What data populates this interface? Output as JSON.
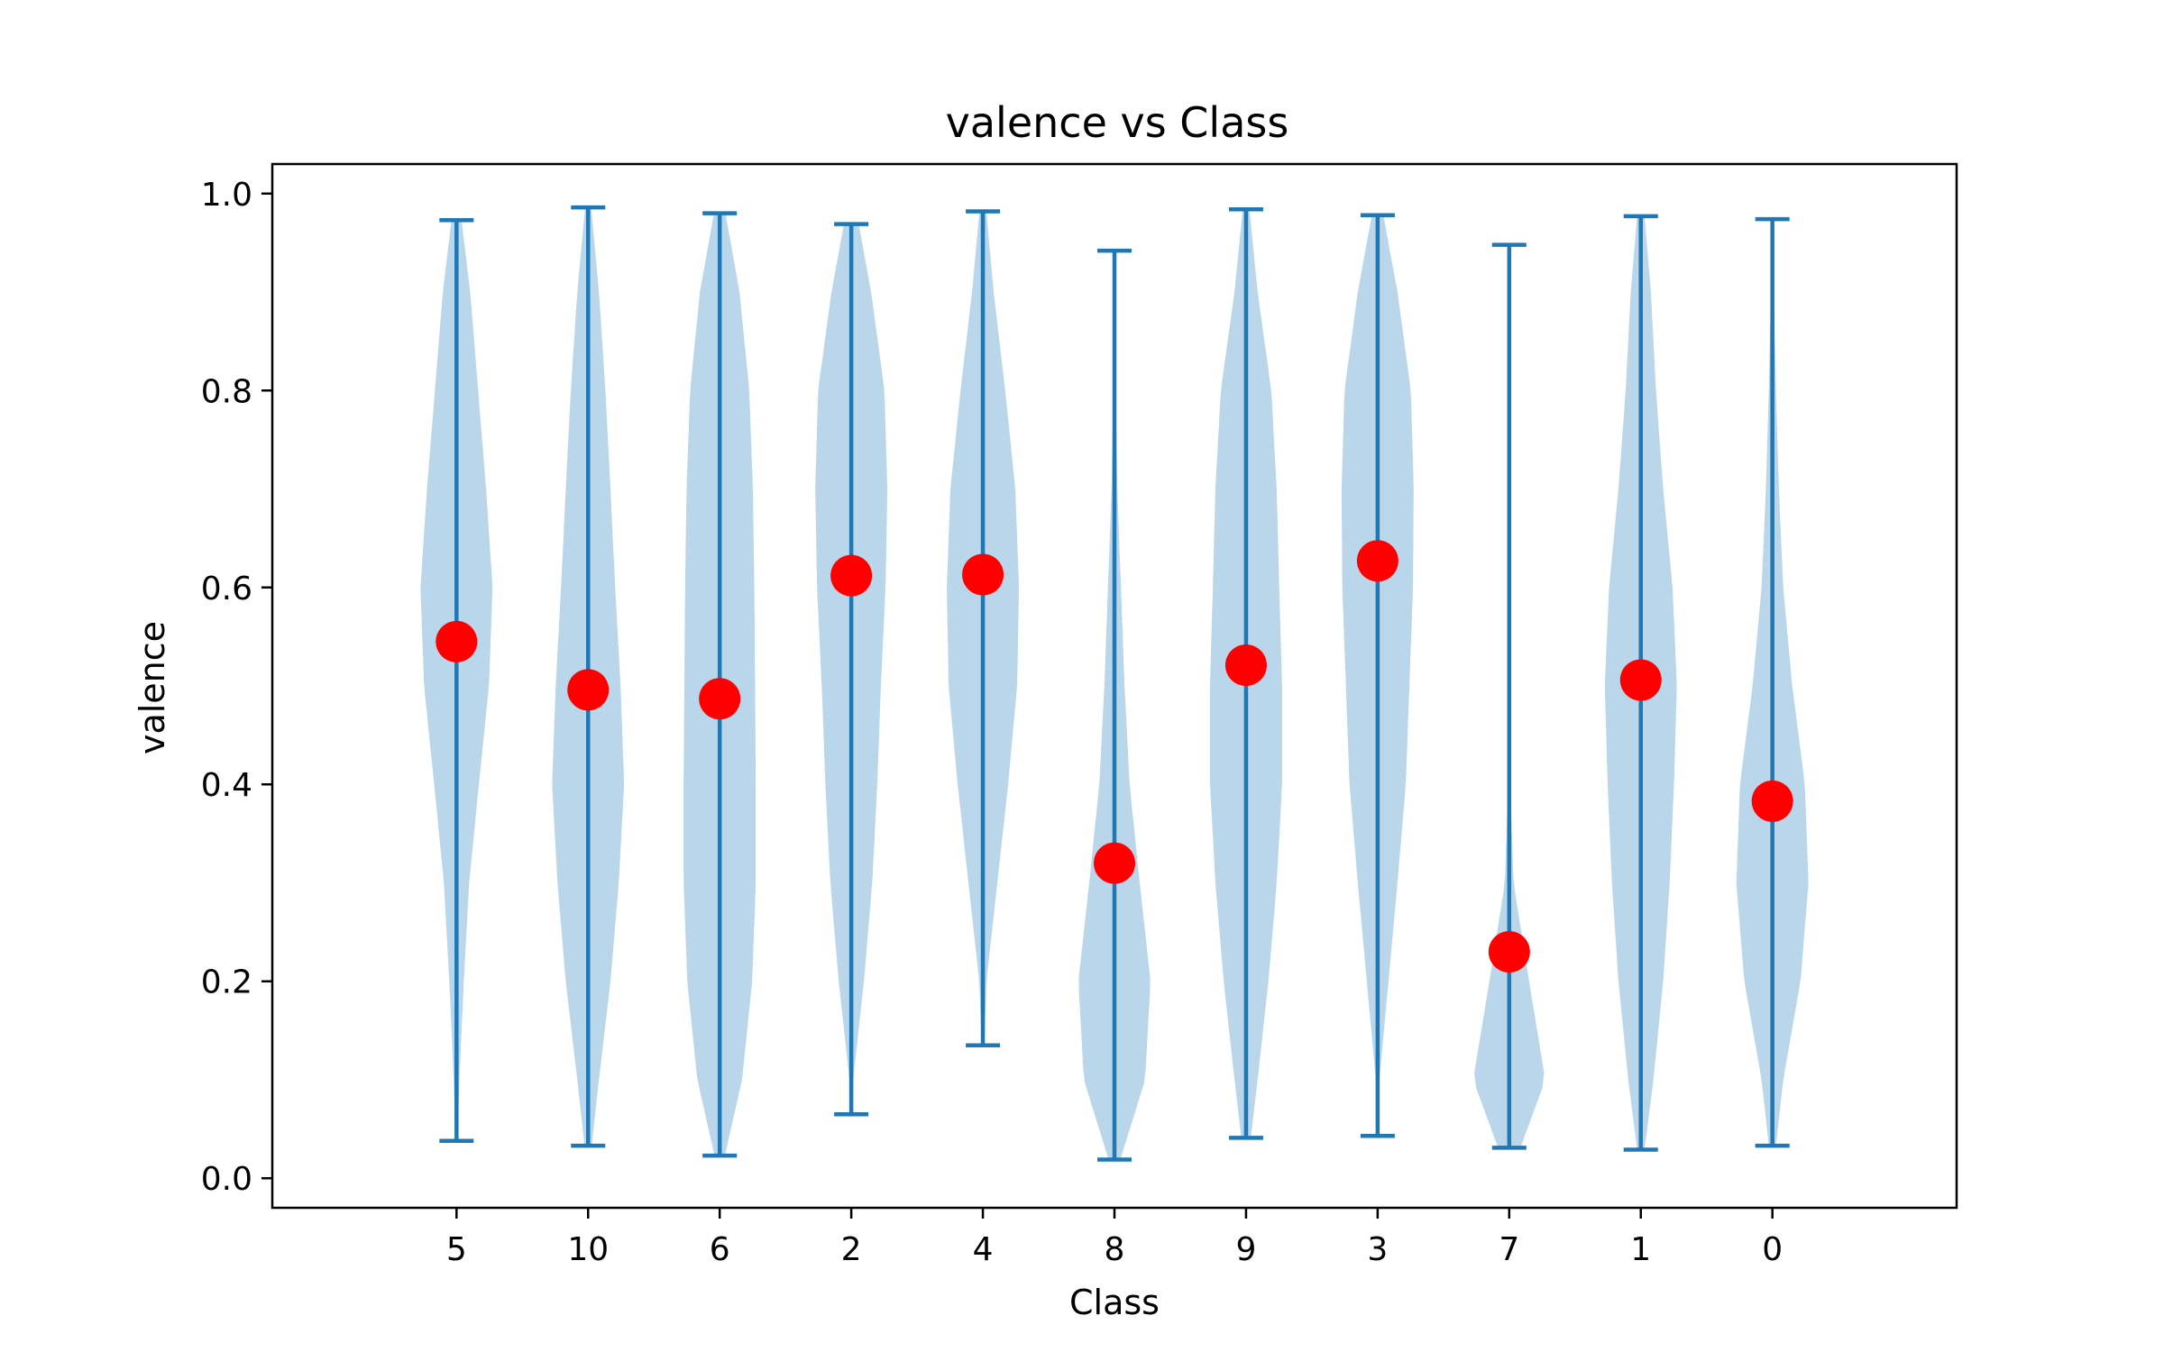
{
  "chart_data": {
    "type": "violin",
    "title": "valence vs Class",
    "xlabel": "Class",
    "ylabel": "valence",
    "ylim": [
      -0.03,
      1.03
    ],
    "yticks": [
      0.0,
      0.2,
      0.4,
      0.6,
      0.8,
      1.0
    ],
    "ytick_labels": [
      "0.0",
      "0.2",
      "0.4",
      "0.6",
      "0.8",
      "1.0"
    ],
    "grid": false,
    "categories": [
      "5",
      "10",
      "6",
      "2",
      "4",
      "8",
      "9",
      "3",
      "7",
      "1",
      "0"
    ],
    "min": [
      0.038,
      0.033,
      0.023,
      0.065,
      0.135,
      0.019,
      0.041,
      0.043,
      0.031,
      0.029,
      0.033
    ],
    "max": [
      0.973,
      0.986,
      0.98,
      0.969,
      0.982,
      0.942,
      0.984,
      0.978,
      0.948,
      0.977,
      0.974
    ],
    "mean": [
      0.545,
      0.496,
      0.487,
      0.612,
      0.613,
      0.32,
      0.521,
      0.627,
      0.23,
      0.506,
      0.383
    ],
    "density_y": [
      0.0,
      0.1,
      0.2,
      0.3,
      0.4,
      0.5,
      0.6,
      0.7,
      0.8,
      0.9,
      1.0
    ],
    "density_width": [
      [
        0.0,
        0.08,
        0.2,
        0.35,
        0.62,
        0.9,
        1.0,
        0.82,
        0.6,
        0.38,
        0.05
      ],
      [
        0.0,
        0.3,
        0.62,
        0.85,
        1.0,
        0.9,
        0.75,
        0.62,
        0.48,
        0.3,
        0.05
      ],
      [
        0.0,
        0.62,
        0.9,
        1.0,
        1.0,
        0.98,
        0.96,
        0.92,
        0.82,
        0.55,
        0.06
      ],
      [
        0.0,
        0.05,
        0.35,
        0.58,
        0.72,
        0.82,
        0.95,
        1.0,
        0.92,
        0.55,
        0.05
      ],
      [
        0.0,
        0.0,
        0.1,
        0.4,
        0.7,
        0.95,
        1.0,
        0.9,
        0.62,
        0.3,
        0.05
      ],
      [
        0.0,
        0.85,
        1.0,
        0.7,
        0.42,
        0.28,
        0.18,
        0.08,
        0.03,
        0.02,
        0.0
      ],
      [
        0.0,
        0.32,
        0.62,
        0.85,
        1.0,
        1.0,
        0.92,
        0.85,
        0.7,
        0.32,
        0.05
      ],
      [
        0.0,
        0.05,
        0.3,
        0.55,
        0.78,
        0.88,
        0.98,
        1.0,
        0.92,
        0.55,
        0.05
      ],
      [
        0.0,
        1.0,
        0.55,
        0.12,
        0.03,
        0.02,
        0.01,
        0.01,
        0.01,
        0.01,
        0.0
      ],
      [
        0.0,
        0.35,
        0.62,
        0.8,
        0.92,
        1.0,
        0.88,
        0.62,
        0.42,
        0.28,
        0.05
      ],
      [
        0.0,
        0.3,
        0.78,
        1.0,
        0.9,
        0.55,
        0.3,
        0.18,
        0.1,
        0.04,
        0.0
      ]
    ],
    "violin_fill": "#bad6ea",
    "line_color": "#1f77b4",
    "mean_marker_color": "#ff0000"
  }
}
